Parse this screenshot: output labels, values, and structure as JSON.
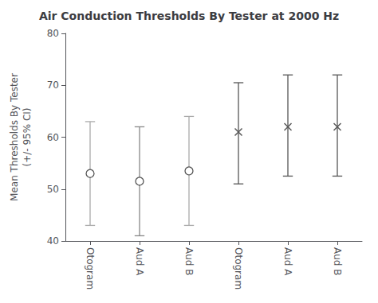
{
  "chart_data": {
    "type": "errorbar",
    "title": "Air Conduction Thresholds By Tester at 2000 Hz",
    "ylabel": "Mean Thresholds By Tester\n(+/- 95% CI)",
    "categories": [
      "Otogram",
      "Aud A",
      "Aud B",
      "Otogram",
      "Aud A",
      "Aud B"
    ],
    "series": [
      {
        "marker": "circle",
        "color": "#555555",
        "values": [
          53.0,
          51.5,
          53.5,
          null,
          null,
          null
        ],
        "ci_lower": [
          43.0,
          41.0,
          43.0,
          null,
          null,
          null
        ],
        "ci_upper": [
          63.0,
          62.0,
          64.0,
          null,
          null,
          null
        ],
        "colors": [
          "#aaaaaa",
          "#888888",
          "#aaaaaa",
          null,
          null,
          null
        ]
      },
      {
        "marker": "x",
        "color": "#555555",
        "values": [
          null,
          null,
          null,
          61.0,
          62.0,
          62.0
        ],
        "ci_lower": [
          null,
          null,
          null,
          51.0,
          52.5,
          52.5
        ],
        "ci_upper": [
          null,
          null,
          null,
          70.5,
          72.0,
          72.0
        ],
        "colors": [
          null,
          null,
          null,
          "#555555",
          "#555555",
          "#555555"
        ]
      }
    ],
    "ylim": [
      40,
      80
    ],
    "yticks": [
      40,
      50,
      60,
      70,
      80
    ],
    "grid": false
  }
}
